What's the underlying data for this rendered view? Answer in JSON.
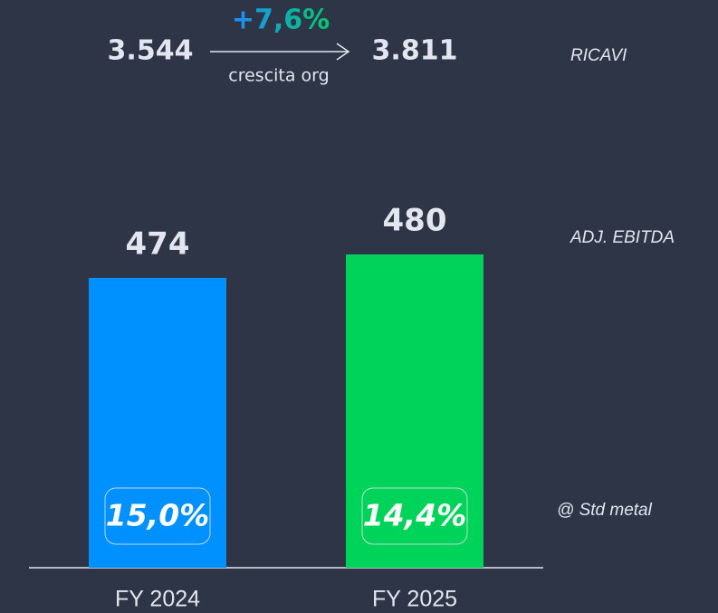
{
  "chart_data": {
    "type": "bar",
    "categories": [
      "FY 2024",
      "FY 2025"
    ],
    "values": [
      474,
      480
    ],
    "colors": [
      "#0091ff",
      "#00d35a"
    ],
    "ylim": [
      400,
      480
    ],
    "series_label": "ADJ. EBITDA",
    "revenue": {
      "label": "RICAVI",
      "values": [
        3544,
        3811
      ],
      "value_labels": [
        "3.544",
        "3.811"
      ],
      "growth": 7.6,
      "growth_label": "+7,6%",
      "growth_note": "crescita org"
    },
    "margins": {
      "label": "@ Std metal",
      "values": [
        15.0,
        14.4
      ],
      "value_labels": [
        "15,0%",
        "14,4%"
      ]
    }
  }
}
